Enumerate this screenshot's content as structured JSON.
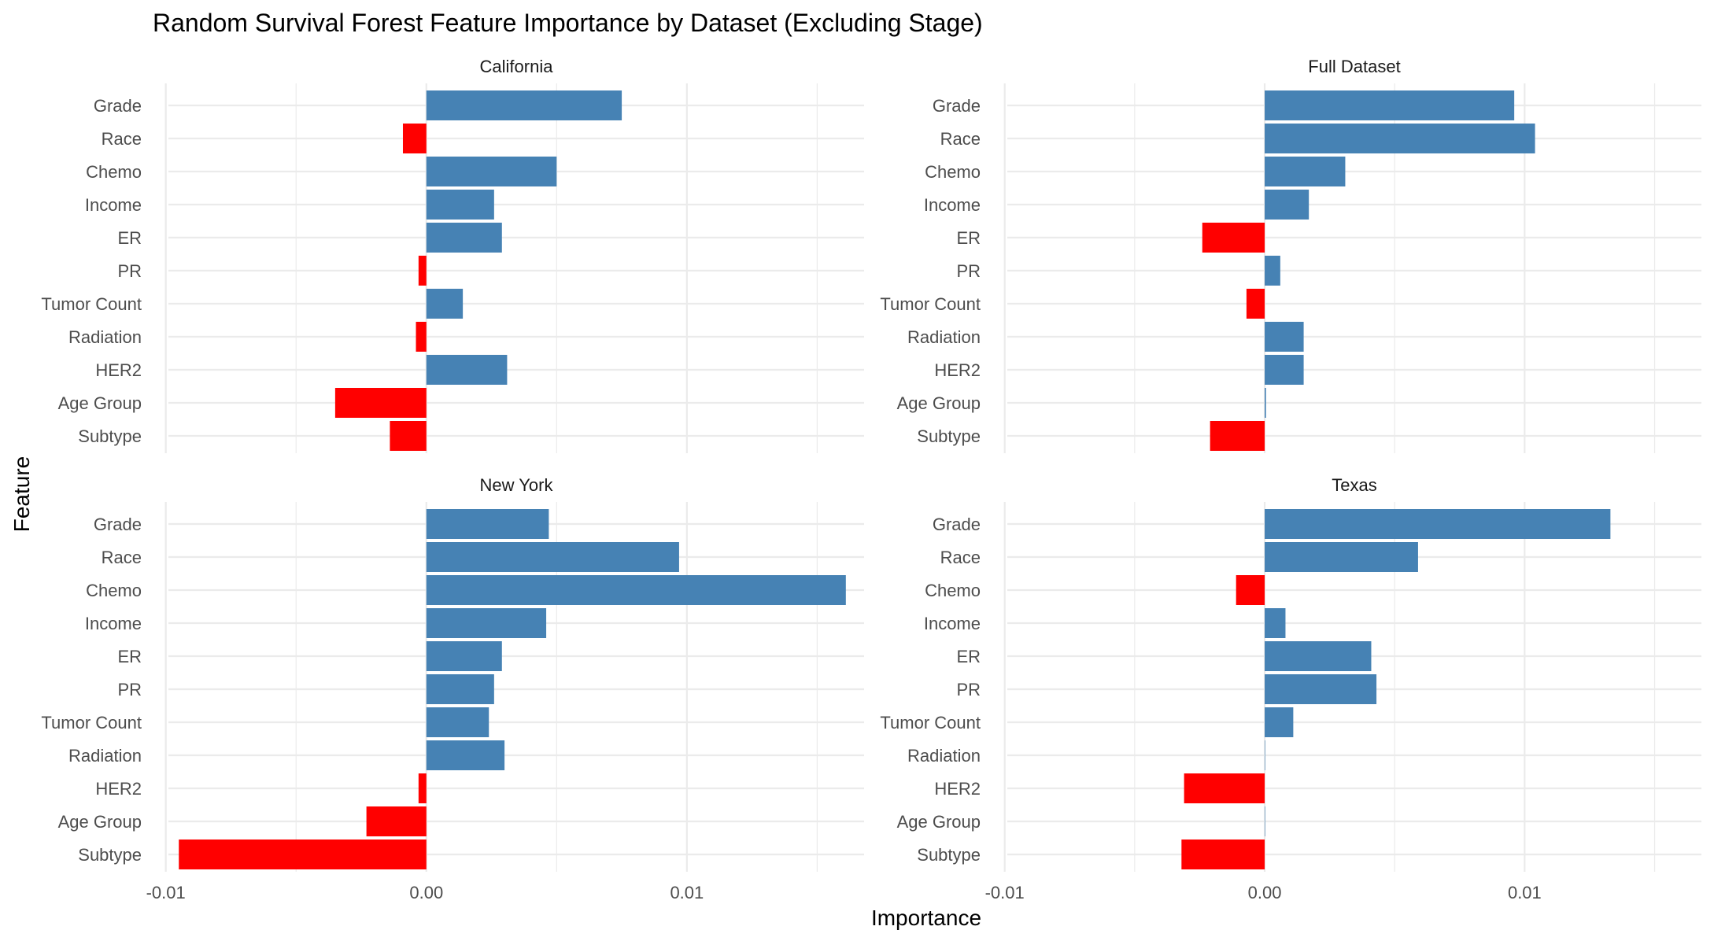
{
  "chart_data": {
    "type": "bar",
    "orientation": "horizontal",
    "title": "Random Survival Forest Feature Importance by Dataset (Excluding Stage)",
    "xlabel": "Importance",
    "ylabel": "Feature",
    "xlim": [
      -0.0099,
      0.0168
    ],
    "xticks": [
      -0.01,
      0.0,
      0.01
    ],
    "xtick_labels": [
      "-0.01",
      "0.00",
      "0.01"
    ],
    "grid": true,
    "legend": "none",
    "colors": {
      "positive": "#4682B4",
      "negative": "#FF0000",
      "grid": "#EBEBEB",
      "text": "#4D4D4D"
    },
    "features": [
      "Grade",
      "Race",
      "Chemo",
      "Income",
      "ER",
      "PR",
      "Tumor Count",
      "Radiation",
      "HER2",
      "Age Group",
      "Subtype"
    ],
    "panels": [
      {
        "name": "California",
        "values": [
          0.0075,
          -0.0009,
          0.005,
          0.0026,
          0.0029,
          -0.0003,
          0.0014,
          -0.0004,
          0.0031,
          -0.0035,
          -0.0014
        ]
      },
      {
        "name": "Full Dataset",
        "values": [
          0.0096,
          0.0104,
          0.0031,
          0.0017,
          -0.0024,
          0.0006,
          -0.0007,
          0.0015,
          0.0015,
          5e-05,
          -0.0021
        ]
      },
      {
        "name": "New York",
        "values": [
          0.0047,
          0.0097,
          0.0161,
          0.0046,
          0.0029,
          0.0026,
          0.0024,
          0.003,
          -0.0003,
          -0.0023,
          -0.0095
        ]
      },
      {
        "name": "Texas",
        "values": [
          0.0133,
          0.0059,
          -0.0011,
          0.0008,
          0.0041,
          0.0043,
          0.0011,
          0.0,
          -0.0031,
          0.0,
          -0.0032
        ]
      }
    ]
  }
}
